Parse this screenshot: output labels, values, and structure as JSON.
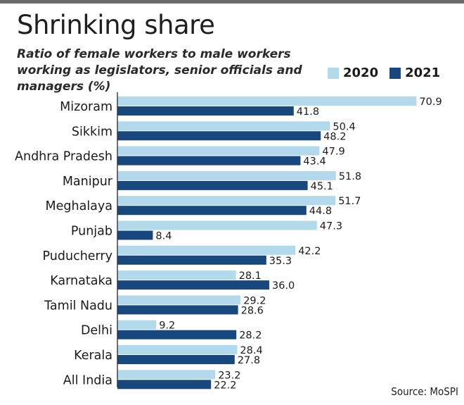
{
  "title": "Shrinking share",
  "subtitle": "Ratio of female workers to male workers working as legislators, senior officials and managers (%)",
  "source": "Source: MoSPI",
  "colors": {
    "series_2020": "#b3d9ec",
    "series_2021": "#17497f"
  },
  "chart_data": {
    "type": "bar",
    "orientation": "horizontal",
    "categories": [
      "Mizoram",
      "Sikkim",
      "Andhra Pradesh",
      "Manipur",
      "Meghalaya",
      "Punjab",
      "Puducherry",
      "Karnataka",
      "Tamil Nadu",
      "Delhi",
      "Kerala",
      "All India"
    ],
    "series": [
      {
        "name": "2020",
        "values": [
          70.9,
          50.4,
          47.9,
          51.8,
          51.7,
          47.3,
          42.2,
          28.1,
          29.2,
          9.2,
          28.4,
          23.2
        ]
      },
      {
        "name": "2021",
        "values": [
          41.8,
          48.2,
          43.4,
          45.1,
          44.8,
          8.4,
          35.3,
          36.0,
          28.6,
          28.2,
          27.8,
          22.2
        ]
      }
    ],
    "value_labels": [
      [
        "70.9",
        "50.4",
        "47.9",
        "51.8",
        "51.7",
        "47.3",
        "42.2",
        "28.1",
        "29.2",
        "9.2",
        "28.4",
        "23.2"
      ],
      [
        "41.8",
        "48.2",
        "43.4",
        "45.1",
        "44.8",
        "8.4",
        "35.3",
        "36.0",
        "28.6",
        "28.2",
        "27.8",
        "22.2"
      ]
    ],
    "legend_position": "top-right",
    "grid": false
  }
}
